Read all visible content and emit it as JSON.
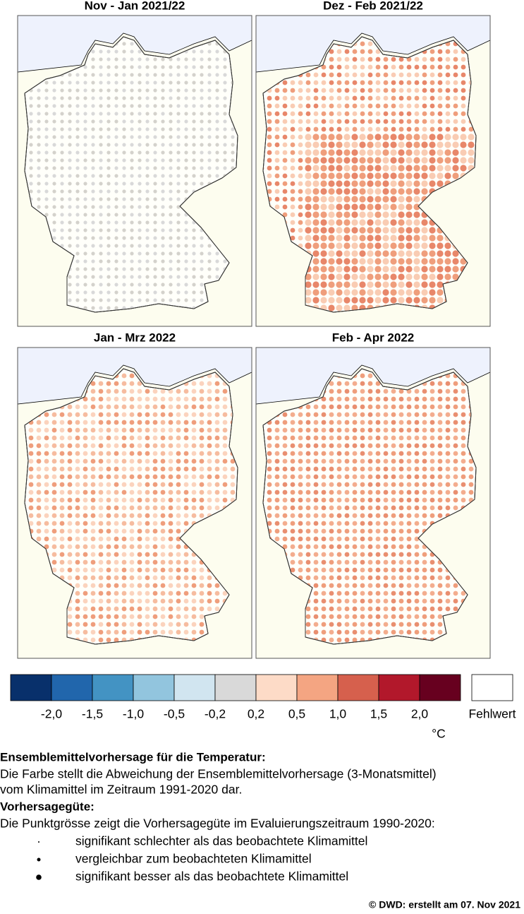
{
  "panels": [
    {
      "title": "Nov - Jan 2021/22",
      "dot_colors": [
        "#d9d9d9",
        "#d4d2cc"
      ]
    },
    {
      "title": "Dez - Feb 2021/22",
      "dot_colors": [
        "#f9ccb3",
        "#ef9e7c",
        "#e8876a"
      ]
    },
    {
      "title": "Jan - Mrz 2022",
      "dot_colors": [
        "#fbd3bd",
        "#f6bc9f",
        "#ef9e7c"
      ]
    },
    {
      "title": "Feb - Apr 2022",
      "dot_colors": [
        "#ef9e7c",
        "#e98f70",
        "#f3ad8e"
      ]
    }
  ],
  "legend": {
    "colors": [
      "#08306b",
      "#2166ac",
      "#4393c3",
      "#92c5de",
      "#d1e5f0",
      "#d9d9d9",
      "#fddbc7",
      "#f4a582",
      "#d6604d",
      "#b2182b",
      "#67001f"
    ],
    "labels": [
      "-2,0",
      "-1,5",
      "-1,0",
      "-0,5",
      "-0,2",
      "0,2",
      "0,5",
      "1,0",
      "1,5",
      "2,0"
    ],
    "unit": "°C",
    "missing": "Fehlwert"
  },
  "text": {
    "heading1": "Ensemblemittelvorhersage für die Temperatur:",
    "para1": [
      "Die Farbe stellt die Abweichung der Ensemblemittelvorhersage (3-Monatsmittel)",
      "vom Klimamittel im Zeitraum 1991-2020 dar."
    ],
    "heading2": "Vorhersagegüte:",
    "para2": "Die Punktgrösse zeigt die Vorhersagegüte im Evaluierungszeitraum 1990-2020:",
    "bullets": [
      "signifikant schlechter als das beobachtete Klimamittel",
      "vergleichbar zum beobachteten Klimamittel",
      "signifikant besser als das beobachtete Klimamittel"
    ],
    "copyright": "©  DWD: erstellt am 07. Nov 2021"
  }
}
